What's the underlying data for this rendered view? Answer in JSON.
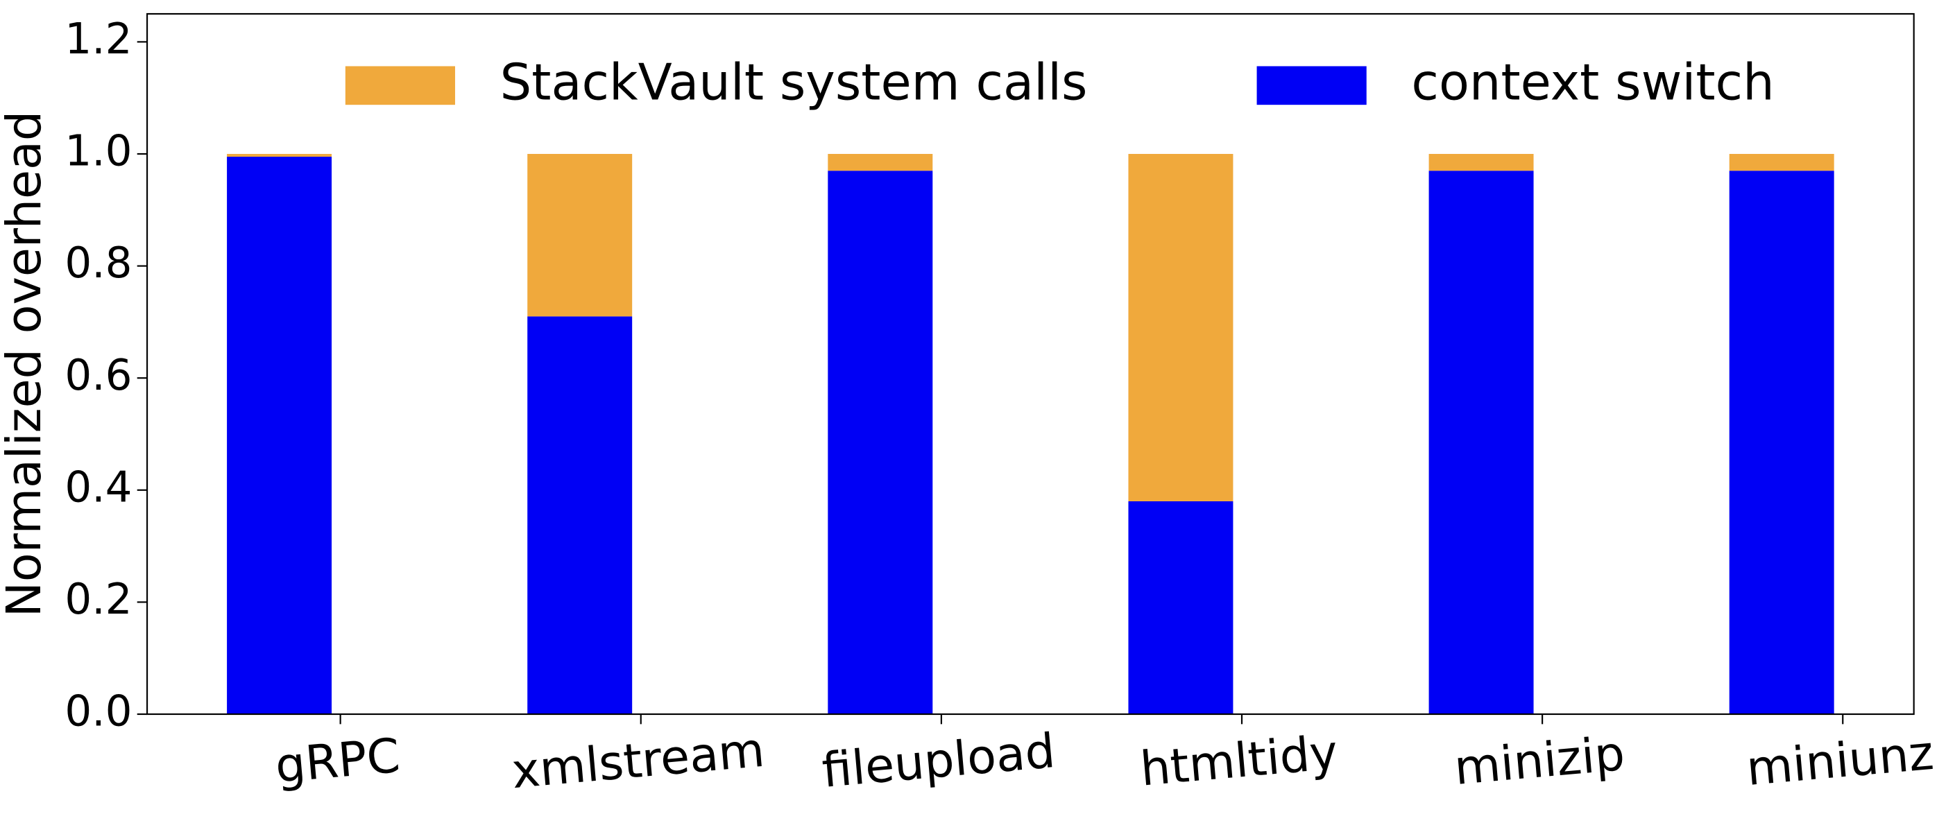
{
  "chart_data": {
    "type": "stacked_bar",
    "categories": [
      "gRPC",
      "xmlstream",
      "fileupload",
      "htmltidy",
      "minizip",
      "miniunz"
    ],
    "y_label": "Normalized overhead",
    "series": [
      {
        "name": "StackVault system calls",
        "color": "#f0a93c",
        "values": [
          0.005,
          0.29,
          0.03,
          0.62,
          0.03,
          0.03
        ]
      },
      {
        "name": "context switch",
        "color": "#0000f5",
        "values": [
          0.995,
          0.71,
          0.97,
          0.38,
          0.97,
          0.97
        ]
      }
    ],
    "ylim": [
      0,
      1.25
    ],
    "yticks": [
      {
        "value": 0,
        "label": "0.0"
      },
      {
        "value": 0.2,
        "label": "0.2"
      },
      {
        "value": 0.4,
        "label": "0.4"
      },
      {
        "value": 0.6,
        "label": "0.6"
      },
      {
        "value": 0.8,
        "label": "0.8"
      },
      {
        "value": 1,
        "label": "1.0"
      },
      {
        "value": 1.2,
        "label": "1.2"
      }
    ],
    "legend": "upper center"
  }
}
